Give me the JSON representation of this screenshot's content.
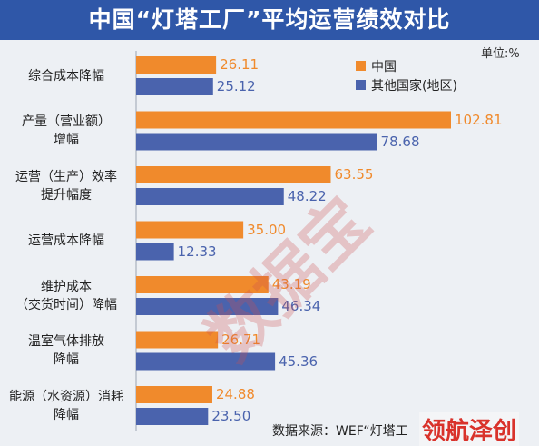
{
  "title": "中国“灯塔工厂”平均运营绩效对比",
  "unit": "单位:%",
  "source": "数据来源：WEF“灯塔工",
  "watermark": "数据宝",
  "brand": "领航泽创",
  "colors": {
    "china": "#f08a2c",
    "other": "#4a63ad",
    "title_bg": "#2f57a8"
  },
  "chart_data": {
    "type": "bar",
    "orientation": "horizontal",
    "categories": [
      [
        "综合成本降幅"
      ],
      [
        "产量（营业额）",
        "增幅"
      ],
      [
        "运营（生产）效率",
        "提升幅度"
      ],
      [
        "运营成本降幅"
      ],
      [
        "维护成本",
        "（交货时间）降幅"
      ],
      [
        "温室气体排放",
        "降幅"
      ],
      [
        "能源（水资源）消耗",
        "降幅"
      ]
    ],
    "series": [
      {
        "name": "中国",
        "values": [
          26.11,
          102.81,
          63.55,
          35.0,
          43.19,
          26.71,
          24.88
        ],
        "labels": [
          "26.11",
          "102.81",
          "63.55",
          "35.00",
          "43.19",
          "26.71",
          "24.88"
        ]
      },
      {
        "name": "其他国家(地区)",
        "values": [
          25.12,
          78.68,
          48.22,
          12.33,
          46.34,
          45.36,
          23.5
        ],
        "labels": [
          "25.12",
          "78.68",
          "48.22",
          "12.33",
          "46.34",
          "45.36",
          "23.50"
        ]
      }
    ],
    "xlim": [
      0,
      110
    ],
    "legend_position": "top-right",
    "grid": false
  }
}
